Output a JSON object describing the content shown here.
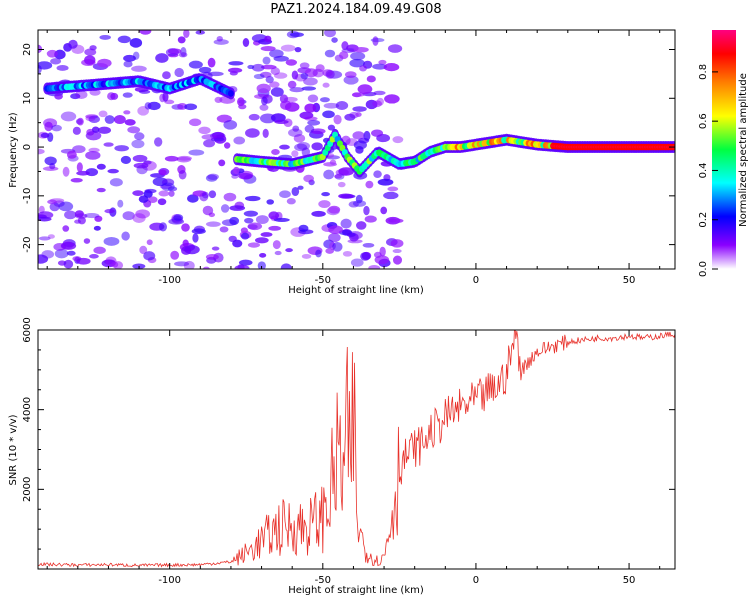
{
  "figure": {
    "title": "PAZ1.2024.184.09.49.G08"
  },
  "chart_data": [
    {
      "type": "heatmap",
      "title": "PAZ1.2024.184.09.49.G08",
      "xlabel": "Height of straight line (km)",
      "ylabel": "Frequency (Hz)",
      "xlim": [
        -143,
        65
      ],
      "ylim": [
        -25,
        24
      ],
      "xticks": [
        -100,
        -50,
        0,
        50
      ],
      "yticks": [
        20,
        10,
        0,
        -10,
        -20
      ],
      "grid": false,
      "colorbar": {
        "label": "Normalized spectral amplitude",
        "range": [
          0,
          0.97
        ],
        "ticks": [
          0.0,
          0.2,
          0.4,
          0.6,
          0.8
        ],
        "colormap": "gist_rainbow_r",
        "colors": [
          "#ffffff",
          "#8a00ff",
          "#0000ff",
          "#00ffff",
          "#00ff40",
          "#ffff00",
          "#ff7f00",
          "#ff0000",
          "#ff0080"
        ]
      },
      "ridges": [
        {
          "name": "main",
          "points": [
            [
              -78,
              -2.5
            ],
            [
              -70,
              -3
            ],
            [
              -60,
              -3.5
            ],
            [
              -50,
              -2
            ],
            [
              -46,
              2.5
            ],
            [
              -42,
              -2
            ],
            [
              -38,
              -5
            ],
            [
              -32,
              -1
            ],
            [
              -25,
              -3.5
            ],
            [
              -20,
              -3
            ],
            [
              -15,
              -1
            ],
            [
              -10,
              0
            ],
            [
              -5,
              0
            ],
            [
              0,
              0.5
            ],
            [
              10,
              1.5
            ],
            [
              20,
              0.5
            ],
            [
              30,
              0
            ],
            [
              50,
              0
            ],
            [
              65,
              0
            ]
          ],
          "amplitude": 0.75
        },
        {
          "name": "upper",
          "points": [
            [
              -140,
              12
            ],
            [
              -130,
              12.5
            ],
            [
              -120,
              13
            ],
            [
              -110,
              13.5
            ],
            [
              -100,
              12
            ],
            [
              -90,
              14
            ],
            [
              -80,
              11
            ]
          ],
          "amplitude": 0.4
        }
      ]
    },
    {
      "type": "line",
      "xlabel": "Height of straight line (km)",
      "ylabel": "SNR (10 * v/v)",
      "xlim": [
        -143,
        65
      ],
      "ylim": [
        0,
        6000
      ],
      "xticks": [
        -100,
        -50,
        0,
        50
      ],
      "yticks": [
        2000,
        4000,
        6000
      ],
      "grid": false,
      "line_color": "#e8312a",
      "series": [
        {
          "x": [
            -143,
            -130,
            -120,
            -110,
            -100,
            -90,
            -80,
            -75,
            -70,
            -65,
            -60,
            -55,
            -50,
            -47,
            -45,
            -43,
            -42,
            -41,
            -40,
            -39,
            -38,
            -36,
            -34,
            -32,
            -30,
            -28,
            -26,
            -24,
            -22,
            -20,
            -18,
            -16,
            -14,
            -12,
            -10,
            -8,
            -6,
            -4,
            -2,
            0,
            2,
            4,
            6,
            8,
            10,
            12,
            13,
            15,
            18,
            20,
            25,
            30,
            35,
            40,
            45,
            50,
            55,
            60,
            65
          ],
          "values": [
            120,
            100,
            110,
            90,
            100,
            110,
            180,
            400,
            700,
            1000,
            1100,
            1050,
            1300,
            2100,
            2800,
            2400,
            3500,
            2200,
            4250,
            1500,
            900,
            500,
            300,
            200,
            300,
            1100,
            2200,
            2700,
            2900,
            3050,
            3100,
            3300,
            3500,
            3600,
            3800,
            3900,
            4000,
            4100,
            4150,
            4250,
            4300,
            4450,
            4500,
            4700,
            4900,
            5600,
            5900,
            5000,
            5300,
            5450,
            5600,
            5700,
            5750,
            5800,
            5800,
            5850,
            5800,
            5850,
            5900
          ]
        }
      ]
    }
  ]
}
